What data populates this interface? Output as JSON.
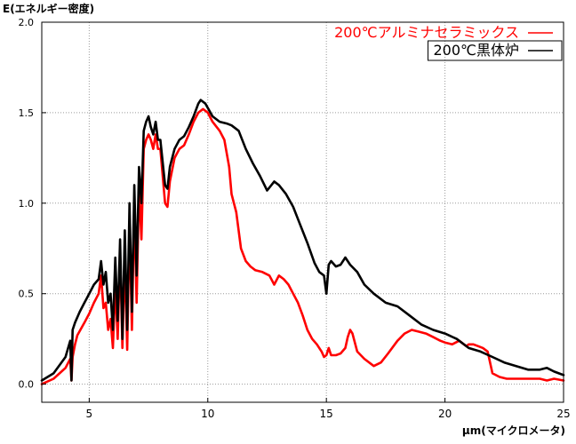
{
  "chart_data": {
    "type": "line",
    "title": "",
    "ylabel": "E(エネルギー密度)",
    "xlabel": "μm(マイクロメータ)",
    "xlim": [
      3,
      25
    ],
    "ylim": [
      -0.1,
      2.0
    ],
    "x_ticks": [
      5,
      10,
      15,
      20,
      25
    ],
    "x_tick_labels": [
      "5",
      "10",
      "15",
      "20",
      "25"
    ],
    "y_ticks": [
      0.0,
      0.5,
      1.0,
      1.5,
      2.0
    ],
    "y_tick_labels": [
      "0.0",
      "0.5",
      "1.0",
      "1.5",
      "2.0"
    ],
    "grid": true,
    "legend_position": "top-right",
    "series": [
      {
        "name": "200℃アルミナセラミックス",
        "color": "#ff0000",
        "x": [
          3.0,
          3.5,
          4.0,
          4.2,
          4.25,
          4.3,
          4.4,
          4.5,
          4.8,
          5.0,
          5.2,
          5.4,
          5.5,
          5.6,
          5.7,
          5.8,
          5.9,
          6.0,
          6.1,
          6.2,
          6.3,
          6.4,
          6.5,
          6.6,
          6.7,
          6.8,
          6.9,
          7.0,
          7.1,
          7.2,
          7.3,
          7.4,
          7.5,
          7.6,
          7.7,
          7.8,
          7.9,
          8.0,
          8.2,
          8.3,
          8.4,
          8.6,
          8.8,
          9.0,
          9.2,
          9.4,
          9.6,
          9.8,
          10.0,
          10.2,
          10.5,
          10.7,
          10.9,
          11.0,
          11.2,
          11.4,
          11.6,
          11.8,
          12.0,
          12.3,
          12.6,
          12.8,
          13.0,
          13.2,
          13.4,
          13.6,
          13.8,
          14.0,
          14.2,
          14.4,
          14.6,
          14.8,
          14.9,
          15.0,
          15.1,
          15.2,
          15.4,
          15.6,
          15.8,
          15.9,
          16.0,
          16.1,
          16.3,
          16.6,
          17.0,
          17.3,
          17.6,
          18.0,
          18.3,
          18.6,
          18.9,
          19.2,
          19.5,
          19.8,
          20.0,
          20.3,
          20.6,
          20.9,
          21.0,
          21.2,
          21.4,
          21.6,
          21.8,
          22.0,
          22.3,
          22.6,
          23.0,
          23.5,
          24.0,
          24.3,
          24.6,
          25.0
        ],
        "y": [
          0.0,
          0.03,
          0.09,
          0.14,
          0.02,
          0.15,
          0.22,
          0.27,
          0.34,
          0.39,
          0.45,
          0.5,
          0.6,
          0.42,
          0.45,
          0.3,
          0.36,
          0.2,
          0.55,
          0.25,
          0.73,
          0.2,
          0.7,
          0.19,
          0.9,
          0.3,
          1.0,
          0.45,
          1.1,
          0.8,
          1.3,
          1.35,
          1.38,
          1.35,
          1.3,
          1.38,
          1.3,
          1.3,
          1.0,
          0.98,
          1.12,
          1.25,
          1.3,
          1.32,
          1.38,
          1.45,
          1.5,
          1.52,
          1.5,
          1.45,
          1.4,
          1.35,
          1.2,
          1.05,
          0.95,
          0.75,
          0.68,
          0.65,
          0.63,
          0.62,
          0.6,
          0.55,
          0.6,
          0.58,
          0.55,
          0.5,
          0.45,
          0.38,
          0.3,
          0.25,
          0.22,
          0.18,
          0.15,
          0.16,
          0.2,
          0.16,
          0.16,
          0.17,
          0.2,
          0.26,
          0.3,
          0.28,
          0.18,
          0.14,
          0.1,
          0.12,
          0.17,
          0.24,
          0.28,
          0.3,
          0.29,
          0.28,
          0.26,
          0.24,
          0.23,
          0.22,
          0.24,
          0.21,
          0.22,
          0.22,
          0.21,
          0.2,
          0.18,
          0.06,
          0.04,
          0.03,
          0.03,
          0.03,
          0.03,
          0.02,
          0.03,
          0.02
        ]
      },
      {
        "name": "200℃黒体炉",
        "color": "#000000",
        "x": [
          3.0,
          3.5,
          4.0,
          4.2,
          4.25,
          4.3,
          4.4,
          4.6,
          4.8,
          5.0,
          5.2,
          5.4,
          5.5,
          5.6,
          5.7,
          5.8,
          5.9,
          6.0,
          6.1,
          6.2,
          6.3,
          6.4,
          6.5,
          6.6,
          6.7,
          6.8,
          6.9,
          7.0,
          7.1,
          7.2,
          7.3,
          7.4,
          7.5,
          7.6,
          7.7,
          7.8,
          7.9,
          8.0,
          8.2,
          8.3,
          8.4,
          8.6,
          8.8,
          9.0,
          9.2,
          9.4,
          9.6,
          9.7,
          9.9,
          10.2,
          10.5,
          10.8,
          11.0,
          11.3,
          11.6,
          11.9,
          12.2,
          12.5,
          12.8,
          13.0,
          13.3,
          13.6,
          13.9,
          14.2,
          14.5,
          14.7,
          14.9,
          15.0,
          15.1,
          15.2,
          15.4,
          15.6,
          15.8,
          16.0,
          16.3,
          16.6,
          17.0,
          17.5,
          18.0,
          18.5,
          19.0,
          19.5,
          20.0,
          20.5,
          21.0,
          21.5,
          22.0,
          22.5,
          23.0,
          23.5,
          24.0,
          24.3,
          24.6,
          25.0
        ],
        "y": [
          0.02,
          0.06,
          0.15,
          0.24,
          0.02,
          0.3,
          0.34,
          0.4,
          0.45,
          0.5,
          0.55,
          0.58,
          0.68,
          0.55,
          0.62,
          0.45,
          0.5,
          0.3,
          0.7,
          0.35,
          0.8,
          0.25,
          0.85,
          0.3,
          1.0,
          0.4,
          1.1,
          0.6,
          1.2,
          1.0,
          1.4,
          1.45,
          1.48,
          1.42,
          1.38,
          1.45,
          1.35,
          1.35,
          1.1,
          1.08,
          1.2,
          1.3,
          1.35,
          1.37,
          1.42,
          1.48,
          1.55,
          1.57,
          1.55,
          1.48,
          1.45,
          1.44,
          1.43,
          1.4,
          1.3,
          1.22,
          1.15,
          1.07,
          1.12,
          1.1,
          1.05,
          0.98,
          0.88,
          0.78,
          0.67,
          0.62,
          0.6,
          0.5,
          0.66,
          0.68,
          0.65,
          0.66,
          0.7,
          0.66,
          0.62,
          0.55,
          0.5,
          0.45,
          0.43,
          0.38,
          0.33,
          0.3,
          0.28,
          0.25,
          0.2,
          0.18,
          0.15,
          0.12,
          0.1,
          0.08,
          0.08,
          0.09,
          0.07,
          0.05
        ]
      }
    ]
  }
}
